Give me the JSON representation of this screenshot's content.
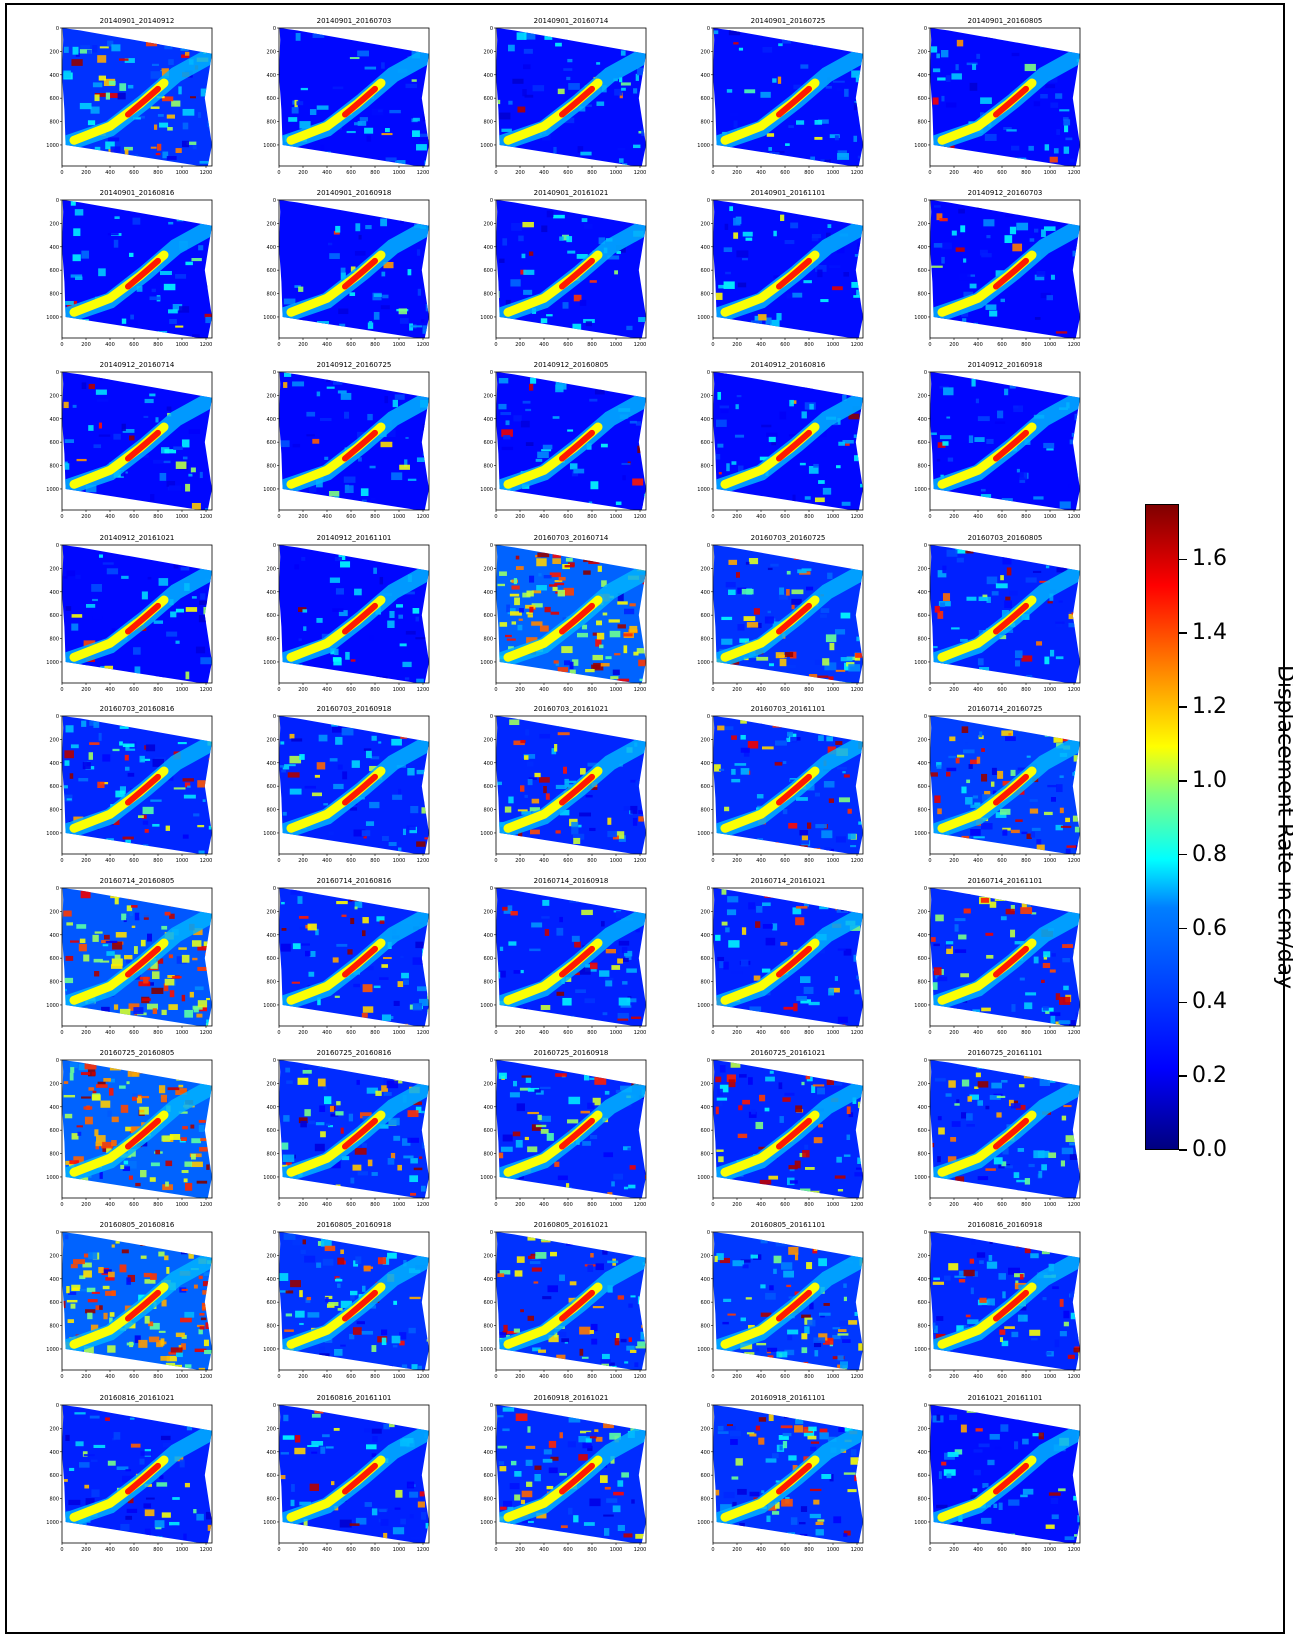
{
  "chart_data": {
    "type": "heatmap",
    "layout": "small multiples, 10 rows by 5 columns",
    "panel_titles": [
      "20140901_20140912",
      "20140901_20160703",
      "20140901_20160714",
      "20140901_20160725",
      "20140901_20160805",
      "20140901_20160816",
      "20140901_20160918",
      "20140901_20161021",
      "20140901_20161101",
      "20140912_20160703",
      "20140912_20160714",
      "20140912_20160725",
      "20140912_20160805",
      "20140912_20160816",
      "20140912_20160918",
      "20140912_20161021",
      "20140912_20161101",
      "20160703_20160714",
      "20160703_20160725",
      "20160703_20160805",
      "20160703_20160816",
      "20160703_20160918",
      "20160703_20161021",
      "20160703_20161101",
      "20160714_20160725",
      "20160714_20160805",
      "20160714_20160816",
      "20160714_20160918",
      "20160714_20161021",
      "20160714_20161101",
      "20160725_20160805",
      "20160725_20160816",
      "20160725_20160918",
      "20160725_20161021",
      "20160725_20161101",
      "20160805_20160816",
      "20160805_20160918",
      "20160805_20161021",
      "20160805_20161101",
      "20160816_20160918",
      "20160816_20161021",
      "20160816_20161101",
      "20160918_20161021",
      "20160918_20161101",
      "20161021_20161101"
    ],
    "noise_levels": [
      0.45,
      0.1,
      0.12,
      0.14,
      0.1,
      0.1,
      0.1,
      0.12,
      0.12,
      0.08,
      0.1,
      0.08,
      0.1,
      0.1,
      0.08,
      0.1,
      0.1,
      0.85,
      0.45,
      0.3,
      0.35,
      0.3,
      0.35,
      0.4,
      0.55,
      0.75,
      0.35,
      0.3,
      0.3,
      0.4,
      0.85,
      0.4,
      0.35,
      0.35,
      0.4,
      0.85,
      0.45,
      0.45,
      0.5,
      0.35,
      0.3,
      0.3,
      0.4,
      0.45,
      0.15
    ],
    "xticks": [
      "0",
      "200",
      "400",
      "600",
      "800",
      "1000",
      "1200"
    ],
    "yticks": [
      "0",
      "200",
      "400",
      "600",
      "800",
      "1000"
    ],
    "xlim": [
      0,
      1250
    ],
    "ylim": [
      1180,
      0
    ],
    "colorbar": {
      "label": "Displacement Rate in cm/day",
      "ticks": [
        "0.0",
        "0.2",
        "0.4",
        "0.6",
        "0.8",
        "1.0",
        "1.2",
        "1.4",
        "1.6"
      ],
      "tick_values": [
        0.0,
        0.2,
        0.4,
        0.6,
        0.8,
        1.0,
        1.2,
        1.4,
        1.6
      ],
      "range": [
        0.0,
        1.75
      ],
      "colormap": "jet"
    }
  }
}
